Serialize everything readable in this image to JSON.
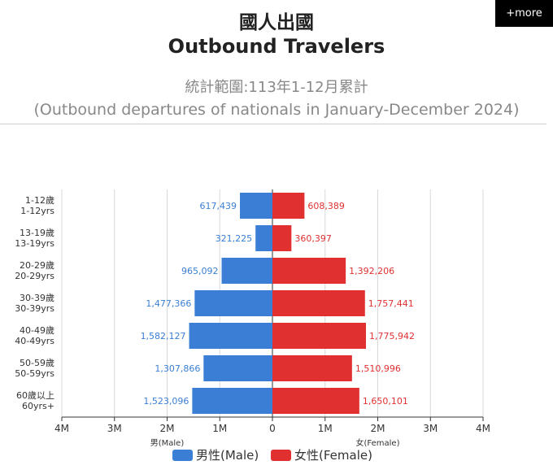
{
  "header": {
    "title_zh": "國人出國",
    "title_en": "Outbound Travelers",
    "subtitle_zh": "統計範圍:113年1-12月累計",
    "subtitle_en": "(Outbound departures of nationals in January-December 2024)",
    "more_label": "+more"
  },
  "chart_data": {
    "type": "bar",
    "orientation": "horizontal-diverging",
    "categories": [
      [
        "1-12歲",
        "1-12yrs"
      ],
      [
        "13-19歲",
        "13-19yrs"
      ],
      [
        "20-29歲",
        "20-29yrs"
      ],
      [
        "30-39歲",
        "30-39yrs"
      ],
      [
        "40-49歲",
        "40-49yrs"
      ],
      [
        "50-59歲",
        "50-59yrs"
      ],
      [
        "60歲以上",
        "60yrs+"
      ]
    ],
    "series": [
      {
        "name": "男性(Male)",
        "color": "#3a7fd5",
        "values": [
          617439,
          321225,
          965092,
          1477366,
          1582127,
          1307866,
          1523096
        ],
        "labels": [
          "617,439",
          "321,225",
          "965,092",
          "1,477,366",
          "1,582,127",
          "1,307,866",
          "1,523,096"
        ]
      },
      {
        "name": "女性(Female)",
        "color": "#e03030",
        "values": [
          608389,
          360397,
          1392206,
          1757441,
          1775942,
          1510996,
          1650101
        ],
        "labels": [
          "608,389",
          "360,397",
          "1,392,206",
          "1,757,441",
          "1,775,942",
          "1,510,996",
          "1,650,101"
        ]
      }
    ],
    "xlim": [
      -4000000,
      4000000
    ],
    "x_ticks": [
      {
        "value": -4000000,
        "label": "4M"
      },
      {
        "value": -3000000,
        "label": "3M"
      },
      {
        "value": -2000000,
        "label": "2M"
      },
      {
        "value": -1000000,
        "label": "1M"
      },
      {
        "value": 0,
        "label": "0"
      },
      {
        "value": 1000000,
        "label": "1M"
      },
      {
        "value": 2000000,
        "label": "2M"
      },
      {
        "value": 3000000,
        "label": "3M"
      },
      {
        "value": 4000000,
        "label": "4M"
      }
    ],
    "xlabel_left": "男(Male)",
    "xlabel_right": "女(Female)",
    "grid": true,
    "legend_position": "bottom-center"
  }
}
